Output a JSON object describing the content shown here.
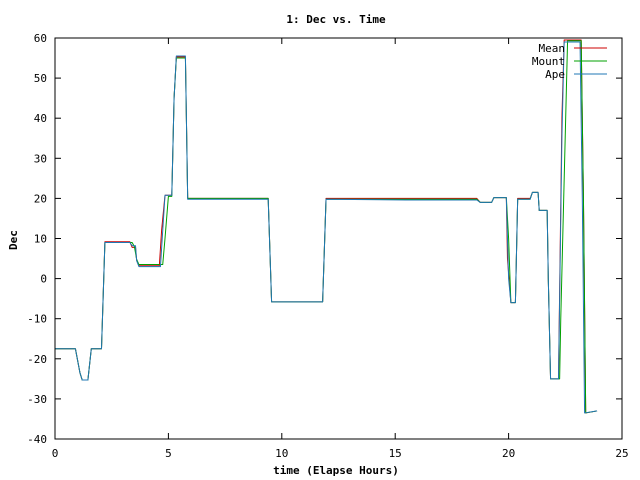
{
  "chart_data": {
    "type": "line",
    "title": "1: Dec vs. Time",
    "xlabel": "time (Elapse Hours)",
    "ylabel": "Dec",
    "xlim": [
      0,
      25
    ],
    "ylim": [
      -40,
      60
    ],
    "x_ticks": [
      0,
      5,
      10,
      15,
      20,
      25
    ],
    "y_ticks": [
      -40,
      -30,
      -20,
      -10,
      0,
      10,
      20,
      30,
      40,
      50,
      60
    ],
    "x_tick_labels": [
      "0",
      "5",
      "10",
      "15",
      "20",
      "25"
    ],
    "y_tick_labels": [
      "-40",
      "-30",
      "-20",
      "-10",
      "0",
      "10",
      "20",
      "30",
      "40",
      "50",
      "60"
    ],
    "grid": false,
    "legend_position": "top-right",
    "series": [
      {
        "name": "Mean",
        "color": "#cc0000",
        "points": [
          [
            0,
            -17.5
          ],
          [
            0.9,
            -17.5
          ],
          [
            1.1,
            -23.5
          ],
          [
            1.2,
            -25.3
          ],
          [
            1.45,
            -25.3
          ],
          [
            1.6,
            -17.5
          ],
          [
            2.05,
            -17.5
          ],
          [
            2.2,
            9.2
          ],
          [
            3.3,
            9.2
          ],
          [
            3.4,
            7.8
          ],
          [
            3.55,
            7.8
          ],
          [
            3.6,
            4.5
          ],
          [
            3.7,
            3.2
          ],
          [
            4.6,
            3.2
          ],
          [
            4.7,
            12
          ],
          [
            4.85,
            20.8
          ],
          [
            5.15,
            20.8
          ],
          [
            5.25,
            45
          ],
          [
            5.35,
            55.3
          ],
          [
            5.75,
            55.3
          ],
          [
            5.85,
            20
          ],
          [
            9.4,
            20
          ],
          [
            9.55,
            -5.8
          ],
          [
            11.8,
            -5.8
          ],
          [
            11.95,
            20
          ],
          [
            15.5,
            20
          ],
          [
            16.9,
            20
          ],
          [
            18.6,
            20
          ],
          [
            18.75,
            19
          ],
          [
            19.25,
            19
          ],
          [
            19.35,
            20.2
          ],
          [
            19.9,
            20.2
          ],
          [
            19.95,
            5
          ],
          [
            20.1,
            -6
          ],
          [
            20.3,
            -6
          ],
          [
            20.4,
            20
          ],
          [
            20.95,
            20
          ],
          [
            21.05,
            21.5
          ],
          [
            21.3,
            21.5
          ],
          [
            21.35,
            17
          ],
          [
            21.7,
            17
          ],
          [
            21.75,
            0
          ],
          [
            21.85,
            -25
          ],
          [
            22.2,
            -25
          ],
          [
            22.35,
            40
          ],
          [
            22.45,
            59.5
          ],
          [
            23.2,
            59.5
          ],
          [
            23.3,
            20
          ],
          [
            23.4,
            -33.5
          ],
          [
            23.9,
            -33
          ]
        ]
      },
      {
        "name": "Mount",
        "color": "#00a000",
        "points": [
          [
            0,
            -17.5
          ],
          [
            0.9,
            -17.5
          ],
          [
            1.1,
            -23.5
          ],
          [
            1.2,
            -25.3
          ],
          [
            1.45,
            -25.3
          ],
          [
            1.6,
            -17.5
          ],
          [
            2.05,
            -17.5
          ],
          [
            2.2,
            9
          ],
          [
            3.4,
            9
          ],
          [
            3.5,
            8
          ],
          [
            3.6,
            4.8
          ],
          [
            3.7,
            3.5
          ],
          [
            4.75,
            3.5
          ],
          [
            4.85,
            10
          ],
          [
            5.0,
            20.5
          ],
          [
            5.15,
            20.5
          ],
          [
            5.25,
            45
          ],
          [
            5.35,
            55
          ],
          [
            5.75,
            55
          ],
          [
            5.85,
            20
          ],
          [
            9.4,
            20
          ],
          [
            9.55,
            -5.8
          ],
          [
            11.8,
            -5.8
          ],
          [
            11.95,
            19.8
          ],
          [
            18.6,
            19.8
          ],
          [
            18.75,
            19
          ],
          [
            19.25,
            19
          ],
          [
            19.35,
            20.2
          ],
          [
            19.9,
            20.2
          ],
          [
            20.0,
            10
          ],
          [
            20.1,
            -6
          ],
          [
            20.3,
            -6
          ],
          [
            20.4,
            19.8
          ],
          [
            20.95,
            19.8
          ],
          [
            21.05,
            21.5
          ],
          [
            21.3,
            21.5
          ],
          [
            21.35,
            17
          ],
          [
            21.7,
            17
          ],
          [
            21.75,
            0
          ],
          [
            21.85,
            -25
          ],
          [
            22.25,
            -25
          ],
          [
            22.3,
            -10
          ],
          [
            22.6,
            59.3
          ],
          [
            23.2,
            59.3
          ],
          [
            23.3,
            20
          ],
          [
            23.4,
            -33.5
          ],
          [
            23.9,
            -33
          ]
        ]
      },
      {
        "name": "Ape",
        "color": "#1f77b4",
        "points": [
          [
            0,
            -17.5
          ],
          [
            0.9,
            -17.5
          ],
          [
            1.1,
            -23.5
          ],
          [
            1.2,
            -25.3
          ],
          [
            1.45,
            -25.3
          ],
          [
            1.6,
            -17.5
          ],
          [
            2.05,
            -17.5
          ],
          [
            2.2,
            9
          ],
          [
            3.3,
            9
          ],
          [
            3.4,
            8.2
          ],
          [
            3.55,
            8.2
          ],
          [
            3.6,
            4.5
          ],
          [
            3.7,
            3
          ],
          [
            4.65,
            3
          ],
          [
            4.75,
            12
          ],
          [
            4.85,
            20.8
          ],
          [
            5.15,
            20.8
          ],
          [
            5.25,
            45
          ],
          [
            5.35,
            55.5
          ],
          [
            5.75,
            55.5
          ],
          [
            5.85,
            19.8
          ],
          [
            9.4,
            19.8
          ],
          [
            9.55,
            -5.8
          ],
          [
            11.8,
            -5.8
          ],
          [
            11.95,
            19.8
          ],
          [
            15.5,
            19.6
          ],
          [
            16.9,
            19.6
          ],
          [
            18.6,
            19.6
          ],
          [
            18.75,
            19
          ],
          [
            19.25,
            19
          ],
          [
            19.35,
            20.2
          ],
          [
            19.9,
            20.2
          ],
          [
            20.0,
            0
          ],
          [
            20.1,
            -6
          ],
          [
            20.3,
            -6
          ],
          [
            20.4,
            19.8
          ],
          [
            20.95,
            19.8
          ],
          [
            21.05,
            21.5
          ],
          [
            21.3,
            21.5
          ],
          [
            21.35,
            17
          ],
          [
            21.7,
            17
          ],
          [
            21.75,
            0
          ],
          [
            21.85,
            -25
          ],
          [
            22.2,
            -25
          ],
          [
            22.35,
            35
          ],
          [
            22.45,
            59
          ],
          [
            23.15,
            59
          ],
          [
            23.25,
            20
          ],
          [
            23.35,
            -33.5
          ],
          [
            23.9,
            -33
          ]
        ]
      }
    ]
  }
}
